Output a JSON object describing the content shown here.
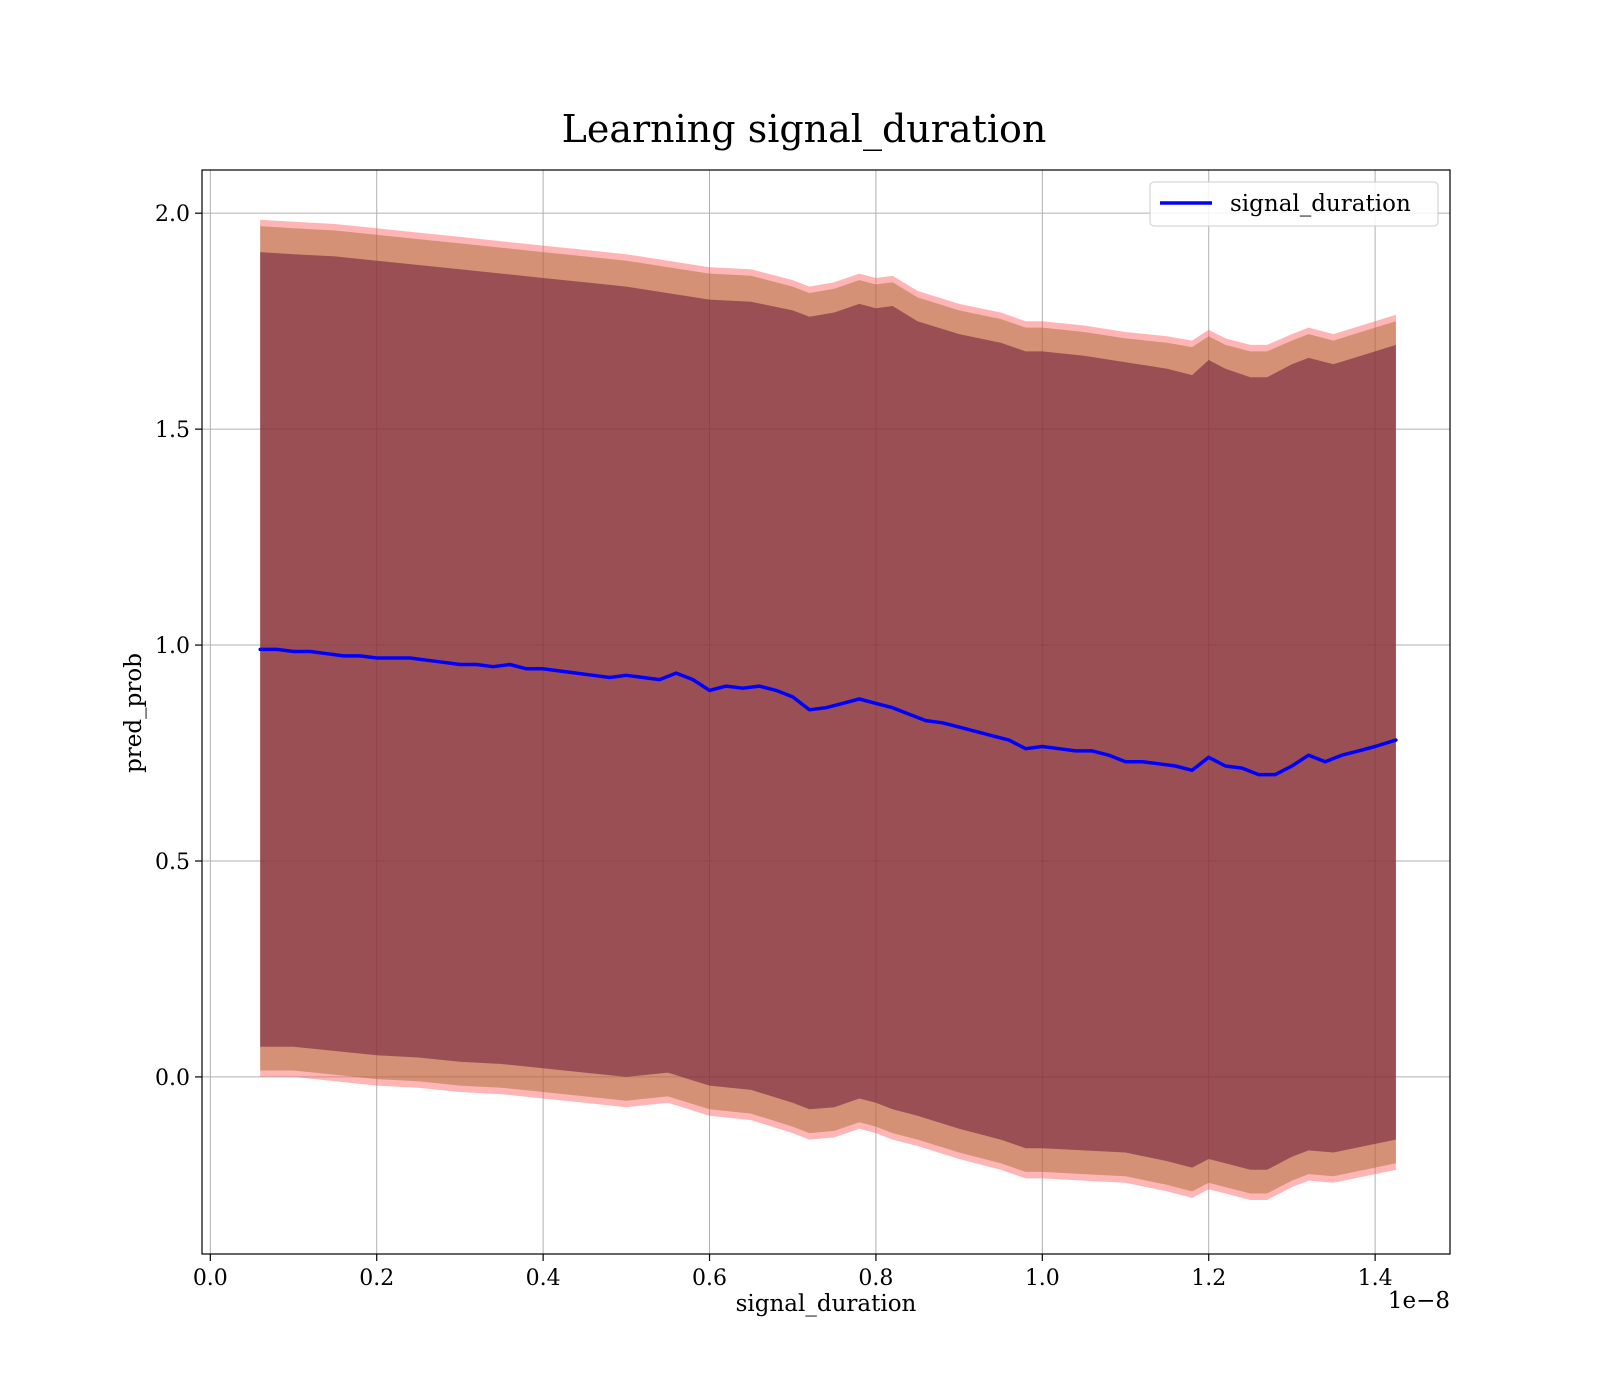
{
  "chart_data": {
    "type": "area",
    "title": "Learning signal_duration",
    "xlabel": "signal_duration",
    "ylabel": "pred_prob",
    "x_offset_label": "1e−8",
    "xlim": [
      -0.01,
      1.49
    ],
    "ylim": [
      -0.41,
      2.1
    ],
    "grid": true,
    "legend_position": "upper right",
    "x_ticks": [
      0.0,
      0.2,
      0.4,
      0.6,
      0.8,
      1.0,
      1.2,
      1.4
    ],
    "x_tick_labels": [
      "0.0",
      "0.2",
      "0.4",
      "0.6",
      "0.8",
      "1.0",
      "1.2",
      "1.4"
    ],
    "y_ticks": [
      0.0,
      0.5,
      1.0,
      1.5,
      2.0
    ],
    "y_tick_labels": [
      "0.0",
      "0.5",
      "1.0",
      "1.5",
      "2.0"
    ],
    "series": [
      {
        "name": "signal_duration",
        "color": "#0000ff",
        "x": [
          0.06,
          0.08,
          0.1,
          0.12,
          0.14,
          0.16,
          0.18,
          0.2,
          0.22,
          0.24,
          0.26,
          0.28,
          0.3,
          0.32,
          0.34,
          0.36,
          0.38,
          0.4,
          0.42,
          0.44,
          0.46,
          0.48,
          0.5,
          0.52,
          0.54,
          0.56,
          0.58,
          0.6,
          0.62,
          0.64,
          0.66,
          0.68,
          0.7,
          0.72,
          0.74,
          0.76,
          0.78,
          0.8,
          0.82,
          0.84,
          0.86,
          0.88,
          0.9,
          0.92,
          0.94,
          0.96,
          0.98,
          1.0,
          1.02,
          1.04,
          1.06,
          1.08,
          1.1,
          1.12,
          1.14,
          1.16,
          1.18,
          1.2,
          1.22,
          1.24,
          1.26,
          1.28,
          1.3,
          1.32,
          1.34,
          1.36,
          1.38,
          1.4,
          1.425
        ],
        "values": [
          0.99,
          0.99,
          0.985,
          0.985,
          0.98,
          0.975,
          0.975,
          0.97,
          0.97,
          0.97,
          0.965,
          0.96,
          0.955,
          0.955,
          0.95,
          0.955,
          0.945,
          0.945,
          0.94,
          0.935,
          0.93,
          0.925,
          0.93,
          0.925,
          0.92,
          0.935,
          0.92,
          0.895,
          0.905,
          0.9,
          0.905,
          0.895,
          0.88,
          0.85,
          0.855,
          0.865,
          0.875,
          0.865,
          0.855,
          0.84,
          0.825,
          0.82,
          0.81,
          0.8,
          0.79,
          0.78,
          0.76,
          0.765,
          0.76,
          0.755,
          0.755,
          0.745,
          0.73,
          0.73,
          0.725,
          0.72,
          0.71,
          0.74,
          0.72,
          0.715,
          0.7,
          0.7,
          0.72,
          0.745,
          0.73,
          0.745,
          0.755,
          0.765,
          0.78
        ]
      }
    ],
    "bands": [
      {
        "color": "#ff5a5a",
        "opacity": 0.45,
        "x": [
          0.06,
          0.1,
          0.15,
          0.2,
          0.25,
          0.3,
          0.35,
          0.4,
          0.45,
          0.5,
          0.55,
          0.6,
          0.65,
          0.7,
          0.72,
          0.75,
          0.78,
          0.8,
          0.82,
          0.85,
          0.9,
          0.95,
          0.98,
          1.0,
          1.05,
          1.1,
          1.15,
          1.18,
          1.2,
          1.22,
          1.25,
          1.27,
          1.3,
          1.32,
          1.35,
          1.4,
          1.425
        ],
        "upper": [
          1.985,
          1.98,
          1.975,
          1.965,
          1.955,
          1.945,
          1.935,
          1.925,
          1.915,
          1.905,
          1.89,
          1.875,
          1.87,
          1.845,
          1.83,
          1.84,
          1.86,
          1.85,
          1.855,
          1.82,
          1.79,
          1.77,
          1.75,
          1.75,
          1.74,
          1.725,
          1.715,
          1.705,
          1.73,
          1.71,
          1.695,
          1.695,
          1.72,
          1.735,
          1.72,
          1.75,
          1.765
        ],
        "lower": [
          0.0,
          0.0,
          -0.01,
          -0.02,
          -0.025,
          -0.035,
          -0.04,
          -0.05,
          -0.06,
          -0.07,
          -0.06,
          -0.09,
          -0.1,
          -0.13,
          -0.145,
          -0.14,
          -0.12,
          -0.13,
          -0.145,
          -0.16,
          -0.19,
          -0.215,
          -0.235,
          -0.235,
          -0.24,
          -0.245,
          -0.265,
          -0.28,
          -0.26,
          -0.27,
          -0.285,
          -0.285,
          -0.255,
          -0.24,
          -0.245,
          -0.225,
          -0.215
        ]
      },
      {
        "color": "#a0662a",
        "opacity": 0.45,
        "x": [
          0.06,
          0.1,
          0.15,
          0.2,
          0.25,
          0.3,
          0.35,
          0.4,
          0.45,
          0.5,
          0.55,
          0.6,
          0.65,
          0.7,
          0.72,
          0.75,
          0.78,
          0.8,
          0.82,
          0.85,
          0.9,
          0.95,
          0.98,
          1.0,
          1.05,
          1.1,
          1.15,
          1.18,
          1.2,
          1.22,
          1.25,
          1.27,
          1.3,
          1.32,
          1.35,
          1.4,
          1.425
        ],
        "upper": [
          1.97,
          1.965,
          1.96,
          1.95,
          1.94,
          1.93,
          1.92,
          1.91,
          1.9,
          1.89,
          1.875,
          1.86,
          1.855,
          1.83,
          1.815,
          1.825,
          1.845,
          1.835,
          1.84,
          1.805,
          1.775,
          1.755,
          1.735,
          1.735,
          1.725,
          1.71,
          1.7,
          1.69,
          1.715,
          1.695,
          1.68,
          1.68,
          1.705,
          1.72,
          1.705,
          1.735,
          1.75
        ],
        "lower": [
          0.015,
          0.015,
          0.005,
          -0.005,
          -0.01,
          -0.02,
          -0.025,
          -0.035,
          -0.045,
          -0.055,
          -0.045,
          -0.075,
          -0.085,
          -0.115,
          -0.13,
          -0.125,
          -0.105,
          -0.115,
          -0.13,
          -0.145,
          -0.175,
          -0.2,
          -0.22,
          -0.22,
          -0.225,
          -0.23,
          -0.25,
          -0.265,
          -0.245,
          -0.255,
          -0.27,
          -0.27,
          -0.24,
          -0.225,
          -0.23,
          -0.21,
          -0.2
        ]
      },
      {
        "color": "#6a1a3a",
        "opacity": 0.55,
        "x": [
          0.06,
          0.1,
          0.15,
          0.2,
          0.25,
          0.3,
          0.35,
          0.4,
          0.45,
          0.5,
          0.55,
          0.6,
          0.65,
          0.7,
          0.72,
          0.75,
          0.78,
          0.8,
          0.82,
          0.85,
          0.9,
          0.95,
          0.98,
          1.0,
          1.05,
          1.1,
          1.15,
          1.18,
          1.2,
          1.22,
          1.25,
          1.27,
          1.3,
          1.32,
          1.35,
          1.4,
          1.425
        ],
        "upper": [
          1.91,
          1.905,
          1.9,
          1.89,
          1.88,
          1.87,
          1.86,
          1.85,
          1.84,
          1.83,
          1.815,
          1.8,
          1.795,
          1.775,
          1.76,
          1.77,
          1.79,
          1.78,
          1.785,
          1.75,
          1.72,
          1.7,
          1.68,
          1.68,
          1.67,
          1.655,
          1.64,
          1.625,
          1.66,
          1.64,
          1.62,
          1.62,
          1.65,
          1.665,
          1.65,
          1.68,
          1.695
        ],
        "lower": [
          0.07,
          0.07,
          0.06,
          0.05,
          0.045,
          0.035,
          0.03,
          0.02,
          0.01,
          0.0,
          0.01,
          -0.02,
          -0.03,
          -0.06,
          -0.075,
          -0.07,
          -0.05,
          -0.06,
          -0.075,
          -0.09,
          -0.12,
          -0.145,
          -0.165,
          -0.165,
          -0.17,
          -0.175,
          -0.195,
          -0.21,
          -0.19,
          -0.2,
          -0.215,
          -0.215,
          -0.185,
          -0.17,
          -0.175,
          -0.155,
          -0.145
        ]
      }
    ]
  }
}
